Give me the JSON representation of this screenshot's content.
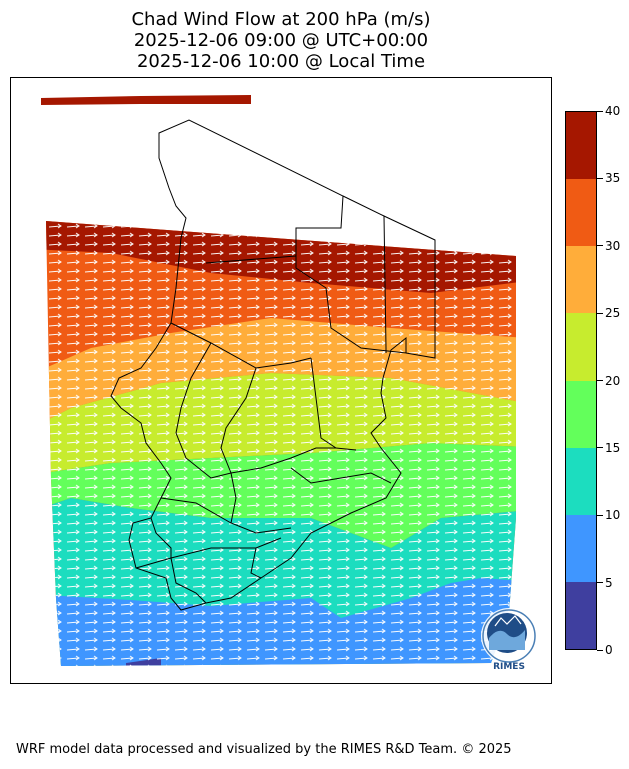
{
  "title": {
    "line1": "Chad Wind Flow at 200 hPa (m/s)",
    "line2": "2025-12-06 09:00 @ UTC+00:00",
    "line3": "2025-12-06 10:00 @ Local Time"
  },
  "colorbar": {
    "ticks": [
      "0",
      "5",
      "10",
      "15",
      "20",
      "25",
      "30",
      "35",
      "40"
    ],
    "colors": [
      "#3f3f9f",
      "#3f96ff",
      "#1cddbf",
      "#63ff5b",
      "#c7ec2e",
      "#ffad3a",
      "#f05b14",
      "#a51700"
    ]
  },
  "logo": {
    "text": "RIMES"
  },
  "footer": "WRF model data processed and visualized by the RIMES R&D Team. © 2025"
}
